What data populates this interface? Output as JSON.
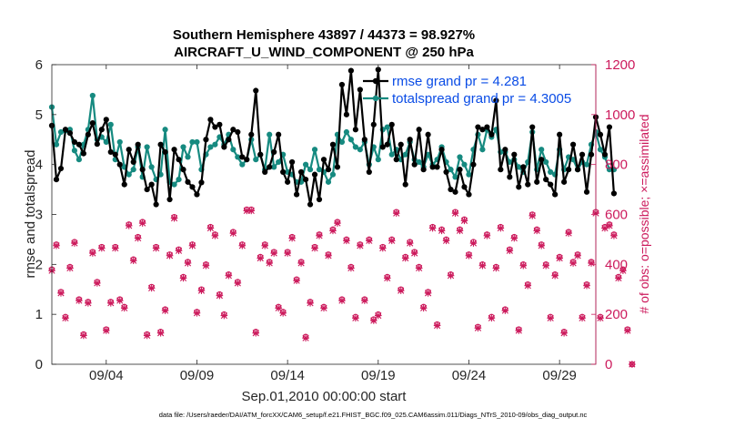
{
  "chart_data": {
    "type": "line",
    "title": "Southern Hemisphere 43897 / 44373 = 98.927%",
    "subtitle": "AIRCRAFT_U_WIND_COMPONENT @ 250 hPa",
    "xlabel": "Sep.01,2010 00:00:00 start",
    "ylabel": "rmse and totalspread",
    "ylabel_right": "# of obs: o=possible; ×=assimilated",
    "footnote": "data file: /Users/raeder/DAI/ATM_forcXX/CAM6_setup/f.e21.FHIST_BGC.f09_025.CAM6assim.011/Diags_NTrS_2010-09/obs_diag_output.nc",
    "xlim": [
      1.0,
      31.0
    ],
    "ylim": [
      0,
      6
    ],
    "ylim_right": [
      0,
      1200
    ],
    "x_ticks": [
      4,
      9,
      14,
      19,
      24,
      29
    ],
    "x_tick_labels": [
      "09/04",
      "09/09",
      "09/14",
      "09/19",
      "09/24",
      "09/29"
    ],
    "y_ticks": [
      0,
      1,
      2,
      3,
      4,
      5,
      6
    ],
    "y_tick_labels": [
      "0",
      "1",
      "2",
      "3",
      "4",
      "5",
      "6"
    ],
    "y_ticks_right": [
      0,
      200,
      400,
      600,
      800,
      1000,
      1200
    ],
    "y_tick_labels_right": [
      "0",
      "200",
      "400",
      "600",
      "800",
      "1000",
      "1200"
    ],
    "legend_position": "top-right",
    "colors": {
      "rmse": "#000000",
      "spread": "#168a80",
      "obs": "#cc1a5c",
      "legend_text": "#0a4ce6"
    },
    "x_start": 1.0,
    "x_step": 0.25,
    "series": [
      {
        "name": "rmse grand pr = 4.281",
        "values": [
          4.78,
          3.7,
          3.92,
          4.7,
          4.63,
          4.45,
          4.4,
          4.22,
          4.6,
          4.83,
          4.41,
          4.7,
          4.9,
          4.25,
          4.2,
          4.0,
          3.6,
          4.3,
          4.05,
          4.4,
          3.9,
          3.5,
          3.6,
          3.2,
          4.4,
          4.25,
          3.3,
          4.3,
          4.1,
          3.9,
          3.65,
          3.55,
          3.4,
          3.64,
          4.5,
          4.9,
          4.75,
          4.8,
          4.35,
          4.5,
          4.7,
          4.65,
          4.15,
          4.1,
          4.6,
          5.48,
          4.2,
          3.85,
          3.95,
          4.25,
          4.6,
          3.85,
          3.65,
          4.05,
          3.4,
          3.85,
          3.7,
          3.2,
          3.8,
          3.3,
          4.1,
          3.9,
          4.4,
          3.95,
          5.6,
          5.0,
          5.88,
          4.7,
          5.5,
          4.5,
          3.85,
          4.8,
          5.9,
          4.35,
          4.4,
          4.8,
          4.1,
          4.4,
          3.6,
          4.5,
          4.0,
          4.7,
          3.9,
          4.6,
          3.95,
          3.95,
          4.3,
          3.85,
          3.5,
          3.45,
          3.9,
          3.55,
          3.4,
          4.0,
          4.75,
          4.7,
          4.75,
          4.6,
          5.28,
          3.9,
          4.3,
          3.75,
          4.2,
          3.55,
          3.95,
          3.6,
          4.75,
          3.65,
          4.1,
          3.7,
          3.6,
          3.4,
          4.6,
          3.65,
          3.9,
          4.4,
          3.9,
          4.2,
          3.45,
          4.2,
          4.95,
          4.6,
          4.2,
          4.75,
          3.42
        ]
      },
      {
        "name": "totalspread grand pr = 4.3005",
        "values": [
          5.15,
          4.4,
          4.65,
          4.68,
          4.7,
          4.28,
          4.1,
          4.4,
          4.7,
          5.38,
          4.5,
          4.55,
          4.45,
          4.8,
          4.1,
          4.45,
          3.95,
          3.8,
          3.9,
          4.35,
          3.75,
          4.35,
          3.95,
          3.7,
          3.8,
          4.7,
          3.65,
          3.6,
          3.7,
          4.35,
          4.15,
          4.45,
          4.45,
          3.9,
          4.2,
          4.35,
          4.4,
          4.55,
          4.4,
          4.6,
          4.3,
          4.15,
          4.0,
          4.1,
          4.5,
          4.1,
          4.2,
          3.9,
          4.6,
          3.95,
          4.05,
          4.2,
          3.85,
          3.8,
          3.65,
          3.65,
          4.0,
          3.9,
          4.3,
          3.9,
          3.85,
          3.65,
          3.8,
          4.6,
          4.45,
          4.65,
          4.5,
          4.35,
          4.3,
          4.45,
          4.0,
          4.35,
          4.1,
          4.7,
          4.75,
          4.2,
          4.3,
          4.1,
          4.2,
          4.45,
          4.1,
          4.05,
          3.95,
          4.2,
          4.0,
          4.1,
          4.35,
          4.05,
          3.9,
          3.75,
          4.15,
          4.0,
          3.8,
          4.3,
          4.6,
          4.3,
          4.7,
          4.55,
          4.7,
          4.25,
          4.25,
          4.05,
          4.1,
          3.95,
          3.85,
          4.05,
          4.65,
          3.9,
          4.3,
          4.05,
          3.85,
          3.8,
          4.3,
          3.9,
          4.15,
          4.1,
          3.9,
          4.05,
          4.0,
          4.4,
          4.65,
          4.3,
          4.15,
          3.9,
          3.9
        ]
      }
    ],
    "obs_possible": [
      380,
      480,
      290,
      190,
      390,
      490,
      260,
      120,
      250,
      450,
      330,
      470,
      140,
      250,
      470,
      260,
      230,
      560,
      420,
      510,
      570,
      120,
      310,
      470,
      130,
      220,
      440,
      590,
      460,
      350,
      410,
      480,
      210,
      300,
      400,
      550,
      520,
      280,
      200,
      360,
      530,
      330,
      480,
      620,
      620,
      130,
      430,
      480,
      410,
      450,
      230,
      210,
      450,
      510,
      340,
      410,
      110,
      250,
      470,
      520,
      230,
      440,
      540,
      570,
      260,
      500,
      390,
      190,
      480,
      260,
      500,
      180,
      200,
      470,
      350,
      500,
      610,
      300,
      430,
      490,
      450,
      390,
      230,
      290,
      550,
      160,
      540,
      500,
      360,
      610,
      540,
      580,
      440,
      490,
      150,
      400,
      520,
      190,
      390,
      550,
      220,
      460,
      510,
      140,
      400,
      320,
      600,
      540,
      480,
      400,
      190,
      360,
      430,
      130,
      530,
      410,
      440,
      190,
      320,
      410,
      610,
      190,
      550,
      560,
      520,
      350,
      380,
      140,
      0
    ],
    "obs_assimilated": [
      375,
      475,
      285,
      185,
      385,
      485,
      255,
      115,
      245,
      445,
      325,
      465,
      135,
      245,
      465,
      255,
      225,
      555,
      415,
      505,
      565,
      115,
      305,
      465,
      125,
      215,
      435,
      585,
      455,
      345,
      405,
      475,
      205,
      295,
      395,
      545,
      515,
      275,
      195,
      355,
      525,
      325,
      475,
      615,
      615,
      125,
      425,
      475,
      405,
      445,
      225,
      205,
      445,
      505,
      335,
      405,
      105,
      245,
      465,
      515,
      225,
      435,
      535,
      565,
      255,
      495,
      385,
      185,
      475,
      255,
      495,
      175,
      195,
      465,
      345,
      495,
      605,
      295,
      425,
      485,
      445,
      385,
      225,
      285,
      545,
      155,
      535,
      495,
      355,
      605,
      535,
      575,
      435,
      485,
      145,
      395,
      515,
      185,
      385,
      545,
      215,
      455,
      505,
      135,
      395,
      315,
      595,
      535,
      475,
      395,
      185,
      355,
      425,
      125,
      525,
      405,
      435,
      185,
      315,
      405,
      605,
      185,
      545,
      555,
      515,
      345,
      375,
      135,
      0
    ]
  }
}
